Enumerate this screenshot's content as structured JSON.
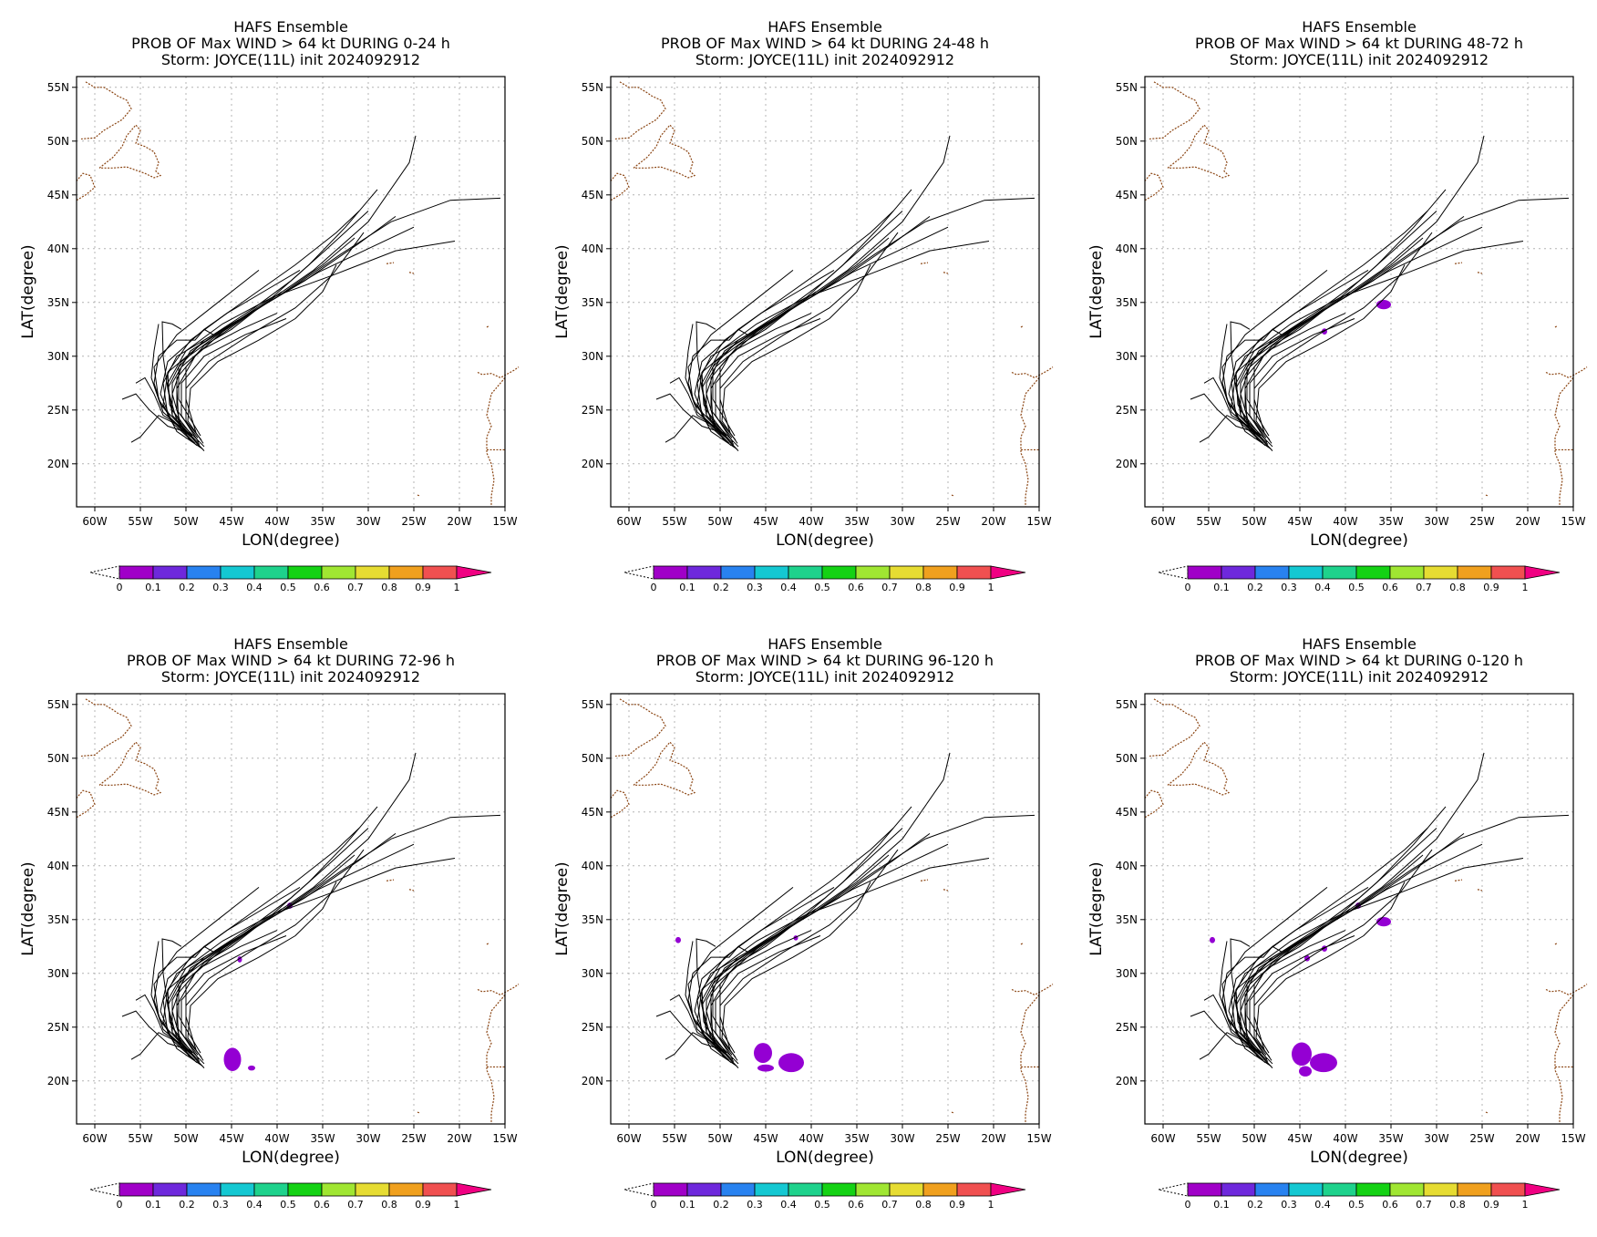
{
  "panels": [
    {
      "title1": "HAFS Ensemble",
      "title2": "PROB OF Max WIND > 64 kt DURING  0-24 h",
      "title3": "Storm: JOYCE(11L) init 2024092912",
      "blobs": []
    },
    {
      "title1": "HAFS Ensemble",
      "title2": "PROB OF Max WIND > 64 kt DURING 24-48 h",
      "title3": "Storm: JOYCE(11L) init 2024092912",
      "blobs": []
    },
    {
      "title1": "HAFS Ensemble",
      "title2": "PROB OF Max WIND > 64 kt DURING 48-72 h",
      "title3": "Storm: JOYCE(11L) init 2024092912",
      "blobs": [
        {
          "lon": -35.8,
          "lat": 34.8,
          "rlon": 0.7,
          "rlat": 0.35,
          "color": "#9400d3"
        },
        {
          "lon": -42.3,
          "lat": 32.3,
          "rlon": 0.2,
          "rlat": 0.2,
          "color": "#9400d3"
        }
      ]
    },
    {
      "title1": "HAFS Ensemble",
      "title2": "PROB OF Max WIND > 64 kt DURING 72-96 h",
      "title3": "Storm: JOYCE(11L) init 2024092912",
      "blobs": [
        {
          "lon": -44.9,
          "lat": 22.0,
          "rlon": 0.85,
          "rlat": 1.0,
          "color": "#9400d3"
        },
        {
          "lon": -42.8,
          "lat": 21.2,
          "rlon": 0.3,
          "rlat": 0.15,
          "color": "#9400d3"
        },
        {
          "lon": -38.6,
          "lat": 36.3,
          "rlon": 0.2,
          "rlat": 0.2,
          "color": "#9400d3"
        },
        {
          "lon": -44.1,
          "lat": 31.3,
          "rlon": 0.15,
          "rlat": 0.2,
          "color": "#9400d3"
        }
      ]
    },
    {
      "title1": "HAFS Ensemble",
      "title2": "PROB OF Max WIND > 64 kt DURING 96-120 h",
      "title3": "Storm: JOYCE(11L) init 2024092912",
      "blobs": [
        {
          "lon": -45.3,
          "lat": 22.6,
          "rlon": 0.9,
          "rlat": 0.85,
          "color": "#9400d3"
        },
        {
          "lon": -42.2,
          "lat": 21.7,
          "rlon": 1.3,
          "rlat": 0.8,
          "color": "#9400d3"
        },
        {
          "lon": -45.0,
          "lat": 21.2,
          "rlon": 0.8,
          "rlat": 0.25,
          "color": "#9400d3"
        },
        {
          "lon": -54.6,
          "lat": 33.1,
          "rlon": 0.2,
          "rlat": 0.2,
          "color": "#9400d3"
        },
        {
          "lon": -41.7,
          "lat": 33.3,
          "rlon": 0.15,
          "rlat": 0.15,
          "color": "#9400d3"
        }
      ]
    },
    {
      "title1": "HAFS Ensemble",
      "title2": "PROB OF Max WIND > 64 kt DURING 0-120 h",
      "title3": "Storm: JOYCE(11L) init 2024092912",
      "blobs": [
        {
          "lon": -44.8,
          "lat": 22.5,
          "rlon": 1.0,
          "rlat": 1.0,
          "color": "#9400d3"
        },
        {
          "lon": -42.4,
          "lat": 21.7,
          "rlon": 1.4,
          "rlat": 0.8,
          "color": "#9400d3"
        },
        {
          "lon": -44.4,
          "lat": 20.9,
          "rlon": 0.6,
          "rlat": 0.4,
          "color": "#9400d3"
        },
        {
          "lon": -35.8,
          "lat": 34.8,
          "rlon": 0.7,
          "rlat": 0.35,
          "color": "#9400d3"
        },
        {
          "lon": -54.6,
          "lat": 33.1,
          "rlon": 0.2,
          "rlat": 0.2,
          "color": "#9400d3"
        },
        {
          "lon": -42.3,
          "lat": 32.3,
          "rlon": 0.2,
          "rlat": 0.2,
          "color": "#9400d3"
        },
        {
          "lon": -44.2,
          "lat": 31.4,
          "rlon": 0.2,
          "rlat": 0.2,
          "color": "#9400d3"
        },
        {
          "lon": -38.6,
          "lat": 36.3,
          "rlon": 0.2,
          "rlat": 0.2,
          "color": "#9400d3"
        }
      ]
    }
  ],
  "map": {
    "lon_range": [
      -62,
      -15
    ],
    "lat_range": [
      16,
      56
    ],
    "lon_ticks": [
      -60,
      -55,
      -50,
      -45,
      -40,
      -35,
      -30,
      -25,
      -20,
      -15
    ],
    "lat_ticks": [
      20,
      25,
      30,
      35,
      40,
      45,
      50,
      55
    ],
    "lon_tick_labels": [
      "60W",
      "55W",
      "50W",
      "45W",
      "40W",
      "35W",
      "30W",
      "25W",
      "20W",
      "15W"
    ],
    "lat_tick_labels": [
      "20N",
      "25N",
      "30N",
      "35N",
      "40N",
      "45N",
      "50N",
      "55N"
    ],
    "xlabel": "LON(degree)",
    "ylabel": "LAT(degree)",
    "grid": true,
    "coast_color": "#8b4513"
  },
  "tracks": [
    [
      [
        -48.0,
        21.2
      ],
      [
        -50.5,
        23.5
      ],
      [
        -51.5,
        26.5
      ],
      [
        -50.5,
        29.0
      ],
      [
        -47.0,
        31.5
      ],
      [
        -42.0,
        34.5
      ],
      [
        -36.0,
        38.0
      ],
      [
        -30.0,
        42.5
      ],
      [
        -25.5,
        48.0
      ],
      [
        -24.8,
        50.5
      ]
    ],
    [
      [
        -48.2,
        21.4
      ],
      [
        -51.0,
        23.0
      ],
      [
        -52.5,
        25.5
      ],
      [
        -52.0,
        28.5
      ],
      [
        -48.5,
        31.0
      ],
      [
        -43.0,
        34.0
      ],
      [
        -37.0,
        37.0
      ],
      [
        -31.0,
        40.5
      ],
      [
        -27.0,
        43.0
      ]
    ],
    [
      [
        -48.0,
        21.6
      ],
      [
        -50.8,
        24.0
      ],
      [
        -51.0,
        27.0
      ],
      [
        -49.0,
        30.0
      ],
      [
        -45.0,
        33.0
      ],
      [
        -39.0,
        36.0
      ],
      [
        -33.0,
        39.5
      ],
      [
        -27.5,
        42.5
      ],
      [
        -21.0,
        44.5
      ],
      [
        -15.5,
        44.7
      ]
    ],
    [
      [
        -48.5,
        21.8
      ],
      [
        -51.5,
        24.5
      ],
      [
        -52.0,
        27.5
      ],
      [
        -50.0,
        30.5
      ],
      [
        -46.0,
        33.0
      ],
      [
        -40.5,
        35.5
      ],
      [
        -34.0,
        37.5
      ],
      [
        -27.0,
        39.8
      ],
      [
        -20.5,
        40.7
      ]
    ],
    [
      [
        -48.5,
        21.6
      ],
      [
        -51.0,
        24.0
      ],
      [
        -52.0,
        27.0
      ],
      [
        -50.5,
        29.5
      ],
      [
        -46.5,
        32.0
      ],
      [
        -41.0,
        35.0
      ],
      [
        -35.5,
        37.8
      ],
      [
        -30.0,
        40.0
      ],
      [
        -25.0,
        42.0
      ]
    ],
    [
      [
        -48.8,
        21.7
      ],
      [
        -51.5,
        23.8
      ],
      [
        -52.8,
        26.5
      ],
      [
        -52.0,
        29.5
      ],
      [
        -48.0,
        32.5
      ],
      [
        -43.0,
        35.5
      ],
      [
        -38.0,
        38.5
      ],
      [
        -33.5,
        41.5
      ],
      [
        -31.0,
        43.5
      ]
    ],
    [
      [
        -48.6,
        22.0
      ],
      [
        -50.5,
        24.5
      ],
      [
        -50.5,
        27.5
      ],
      [
        -48.0,
        30.0
      ],
      [
        -43.5,
        32.0
      ],
      [
        -39.0,
        33.5
      ]
    ],
    [
      [
        -49.0,
        21.9
      ],
      [
        -51.5,
        24.0
      ],
      [
        -53.0,
        26.0
      ],
      [
        -53.5,
        29.0
      ],
      [
        -51.0,
        32.0
      ],
      [
        -46.5,
        35.0
      ],
      [
        -42.0,
        38.0
      ]
    ],
    [
      [
        -49.0,
        22.1
      ],
      [
        -51.5,
        24.5
      ],
      [
        -51.5,
        27.5
      ],
      [
        -49.5,
        30.5
      ],
      [
        -45.0,
        33.0
      ],
      [
        -40.0,
        35.5
      ],
      [
        -35.0,
        38.5
      ],
      [
        -31.5,
        41.0
      ]
    ],
    [
      [
        -48.3,
        22.2
      ],
      [
        -50.0,
        24.0
      ],
      [
        -50.0,
        27.0
      ],
      [
        -47.5,
        29.5
      ],
      [
        -43.0,
        32.0
      ],
      [
        -38.0,
        34.5
      ],
      [
        -34.0,
        37.5
      ],
      [
        -30.5,
        41.5
      ]
    ],
    [
      [
        -48.7,
        22.4
      ],
      [
        -51.0,
        25.0
      ],
      [
        -51.0,
        28.0
      ],
      [
        -48.5,
        30.5
      ],
      [
        -44.0,
        32.5
      ],
      [
        -40.0,
        34.0
      ]
    ],
    [
      [
        -49.2,
        22.3
      ],
      [
        -52.0,
        24.5
      ],
      [
        -52.5,
        27.5
      ],
      [
        -51.0,
        30.0
      ],
      [
        -47.0,
        32.0
      ],
      [
        -42.5,
        34.5
      ],
      [
        -38.5,
        37.0
      ],
      [
        -34.5,
        40.0
      ],
      [
        -30.0,
        43.5
      ]
    ],
    [
      [
        -49.5,
        22.5
      ],
      [
        -52.5,
        24.8
      ],
      [
        -53.5,
        27.5
      ],
      [
        -53.0,
        30.0
      ],
      [
        -51.0,
        31.5
      ],
      [
        -49.0,
        31.5
      ],
      [
        -48.0,
        32.5
      ],
      [
        -47.0,
        32.0
      ]
    ],
    [
      [
        -49.3,
        22.6
      ],
      [
        -51.5,
        25.0
      ],
      [
        -52.0,
        27.0
      ],
      [
        -52.5,
        30.0
      ],
      [
        -52.6,
        33.2
      ],
      [
        -51.5,
        33.0
      ],
      [
        -50.5,
        32.5
      ]
    ],
    [
      [
        -49.4,
        22.8
      ],
      [
        -52.0,
        23.5
      ],
      [
        -54.0,
        25.0
      ],
      [
        -55.5,
        26.5
      ],
      [
        -57.0,
        26.0
      ]
    ],
    [
      [
        -50.2,
        23.2
      ],
      [
        -52.8,
        25.5
      ],
      [
        -53.8,
        28.0
      ],
      [
        -53.5,
        30.5
      ],
      [
        -53.0,
        33.0
      ]
    ],
    [
      [
        -50.4,
        23.4
      ],
      [
        -53.0,
        24.5
      ],
      [
        -55.0,
        22.5
      ],
      [
        -56.0,
        22.0
      ]
    ],
    [
      [
        -50.6,
        23.5
      ],
      [
        -52.5,
        24.5
      ],
      [
        -53.5,
        26.5
      ],
      [
        -54.5,
        28.0
      ],
      [
        -55.5,
        27.5
      ]
    ],
    [
      [
        -48.9,
        22.9
      ],
      [
        -50.0,
        26.0
      ],
      [
        -50.0,
        29.0
      ],
      [
        -48.0,
        31.0
      ],
      [
        -45.0,
        32.5
      ],
      [
        -42.0,
        34.5
      ],
      [
        -39.5,
        36.0
      ]
    ],
    [
      [
        -48.1,
        21.9
      ],
      [
        -49.8,
        24.0
      ],
      [
        -49.5,
        27.0
      ],
      [
        -46.5,
        29.5
      ],
      [
        -42.0,
        31.5
      ],
      [
        -38.0,
        33.5
      ],
      [
        -35.0,
        36.0
      ],
      [
        -33.5,
        38.5
      ]
    ],
    [
      [
        -49.6,
        22.2
      ],
      [
        -51.8,
        25.5
      ],
      [
        -52.0,
        28.5
      ],
      [
        -49.5,
        31.5
      ],
      [
        -45.5,
        34.0
      ],
      [
        -41.5,
        36.0
      ],
      [
        -37.5,
        38.0
      ]
    ],
    [
      [
        -48.4,
        22.6
      ],
      [
        -50.8,
        26.0
      ],
      [
        -50.8,
        29.0
      ],
      [
        -48.0,
        31.5
      ],
      [
        -44.0,
        33.5
      ],
      [
        -40.5,
        35.5
      ],
      [
        -36.5,
        38.5
      ],
      [
        -32.5,
        42.0
      ],
      [
        -29.0,
        45.5
      ]
    ]
  ],
  "coast": {
    "newfoundland": [
      [
        -59.5,
        47.5
      ],
      [
        -58.0,
        48.5
      ],
      [
        -57.0,
        49.5
      ],
      [
        -56.5,
        50.5
      ],
      [
        -55.5,
        51.5
      ],
      [
        -55.0,
        51.0
      ],
      [
        -55.5,
        49.8
      ],
      [
        -54.5,
        49.5
      ],
      [
        -53.5,
        49.0
      ],
      [
        -53.0,
        48.0
      ],
      [
        -53.3,
        47.2
      ],
      [
        -52.8,
        46.8
      ],
      [
        -53.5,
        46.6
      ],
      [
        -54.5,
        47.0
      ],
      [
        -55.5,
        47.3
      ],
      [
        -56.5,
        47.6
      ],
      [
        -58.0,
        47.5
      ],
      [
        -59.5,
        47.5
      ]
    ],
    "labrador": [
      [
        -61.0,
        55.5
      ],
      [
        -60.0,
        55.0
      ],
      [
        -59.0,
        55.0
      ],
      [
        -58.0,
        54.5
      ],
      [
        -57.5,
        54.2
      ],
      [
        -56.5,
        53.8
      ],
      [
        -56.0,
        53.0
      ],
      [
        -57.0,
        52.0
      ],
      [
        -58.0,
        51.5
      ],
      [
        -59.0,
        51.0
      ],
      [
        -60.0,
        50.3
      ],
      [
        -61.5,
        50.2
      ]
    ],
    "nova_scotia": [
      [
        -62.0,
        44.5
      ],
      [
        -61.0,
        45.0
      ],
      [
        -60.0,
        45.7
      ],
      [
        -60.5,
        46.8
      ],
      [
        -61.3,
        47.0
      ],
      [
        -62.0,
        46.3
      ]
    ],
    "africa": [
      [
        -15.0,
        28.0
      ],
      [
        -16.5,
        26.5
      ],
      [
        -17.0,
        24.5
      ],
      [
        -16.5,
        23.5
      ],
      [
        -17.0,
        22.5
      ],
      [
        -17.0,
        21.0
      ],
      [
        -16.5,
        20.0
      ],
      [
        -16.2,
        18.5
      ],
      [
        -16.5,
        17.0
      ],
      [
        -16.5,
        16.0
      ]
    ],
    "western_sahara_border": [
      [
        -17.0,
        21.3
      ],
      [
        -15.0,
        21.3
      ]
    ],
    "canaries": [
      [
        -18.0,
        28.5
      ],
      [
        -17.5,
        28.3
      ],
      [
        -16.5,
        28.4
      ],
      [
        -15.5,
        28.0
      ],
      [
        -14.0,
        28.7
      ],
      [
        -13.5,
        29.0
      ]
    ],
    "madeira": [
      [
        -17.0,
        32.7
      ],
      [
        -16.8,
        32.8
      ]
    ],
    "azores": [
      [
        -25.5,
        37.8
      ],
      [
        -25.0,
        37.7
      ],
      [
        -28.0,
        38.6
      ],
      [
        -27.2,
        38.7
      ]
    ],
    "cape_verde": [
      [
        -24.6,
        17.1
      ],
      [
        -24.3,
        17.0
      ]
    ]
  },
  "colorbar": {
    "labels": [
      "0",
      "0.1",
      "0.2",
      "0.3",
      "0.4",
      "0.5",
      "0.6",
      "0.7",
      "0.8",
      "0.9",
      "1"
    ],
    "colors": [
      "#a000c8",
      "#6e28dc",
      "#2882f0",
      "#14c8d2",
      "#1ed28c",
      "#14d214",
      "#a0e632",
      "#e6dc32",
      "#f0a01e",
      "#f05050",
      "#f00082"
    ],
    "under_color": "#ffffff"
  }
}
